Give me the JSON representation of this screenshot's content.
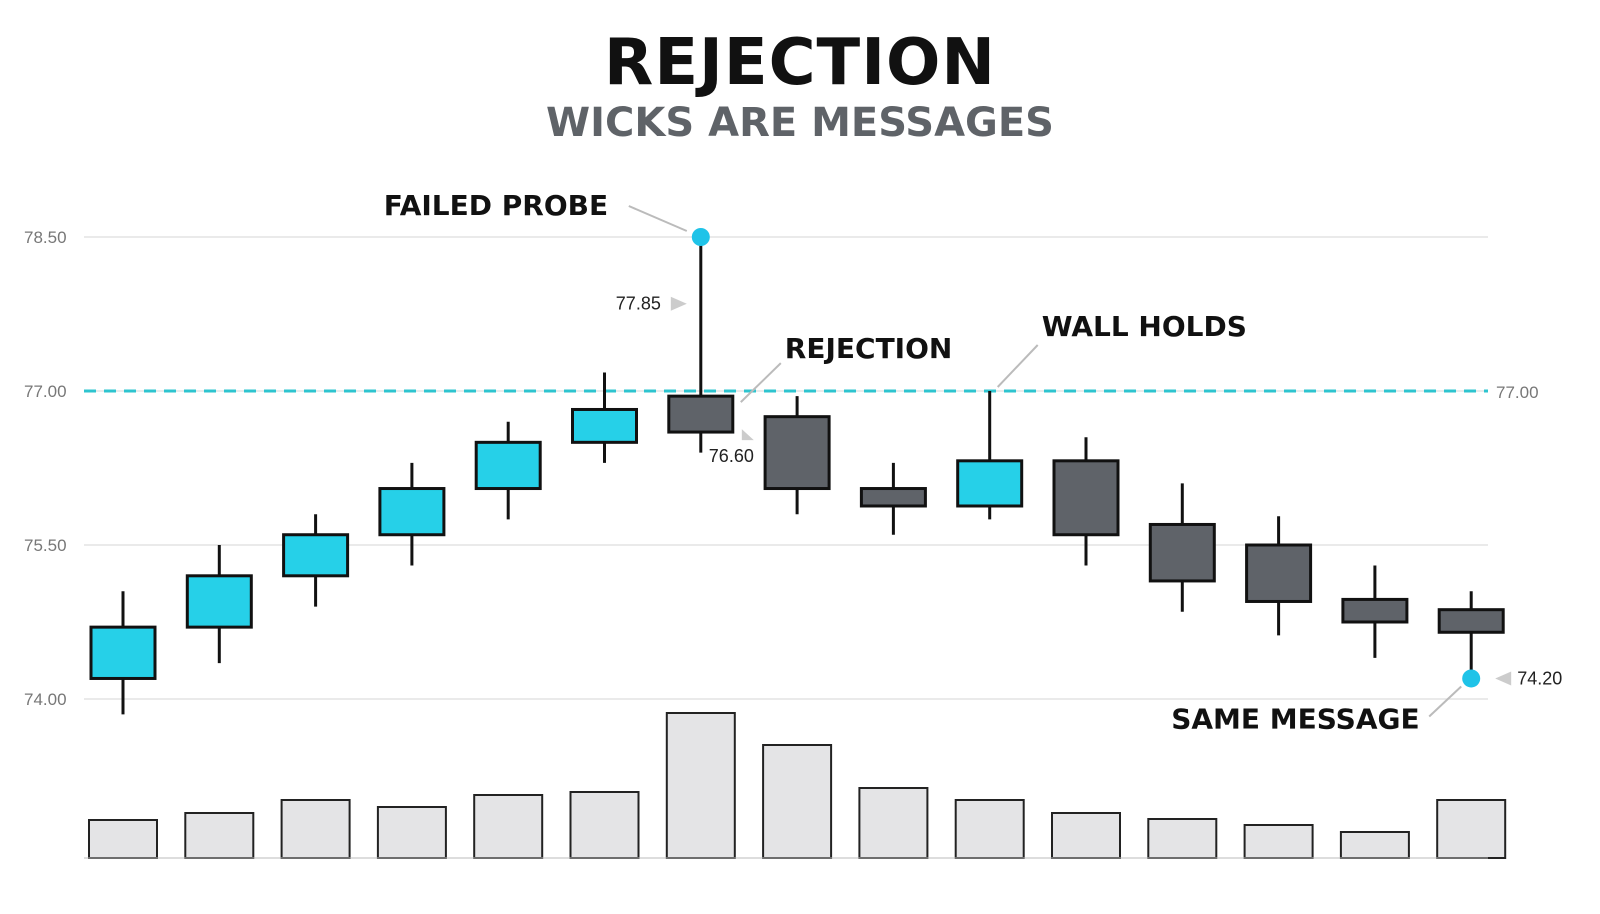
{
  "title": "REJECTION",
  "subtitle": "WICKS ARE MESSAGES",
  "colors": {
    "bull": "#26d0e8",
    "bear": "#5f6369",
    "outline": "#111111",
    "volume_fill": "#e4e4e6",
    "grid": "#dddddd",
    "level_line": "#2ec4cf",
    "marker": "#1fc3e8"
  },
  "chart_data": {
    "type": "candlestick",
    "ylim": [
      74.0,
      78.5
    ],
    "y_ticks": [
      "78.50",
      "77.00",
      "75.50",
      "74.00"
    ],
    "grid": true,
    "candles": [
      {
        "open": 74.2,
        "high": 75.05,
        "low": 73.85,
        "close": 74.7
      },
      {
        "open": 74.7,
        "high": 75.5,
        "low": 74.35,
        "close": 75.2
      },
      {
        "open": 75.2,
        "high": 75.8,
        "low": 74.9,
        "close": 75.6
      },
      {
        "open": 75.6,
        "high": 76.3,
        "low": 75.3,
        "close": 76.05
      },
      {
        "open": 76.05,
        "high": 76.7,
        "low": 75.75,
        "close": 76.5
      },
      {
        "open": 76.5,
        "high": 77.18,
        "low": 76.3,
        "close": 76.82
      },
      {
        "open": 76.95,
        "high": 78.5,
        "low": 76.4,
        "close": 76.6
      },
      {
        "open": 76.75,
        "high": 76.95,
        "low": 75.8,
        "close": 76.05
      },
      {
        "open": 76.05,
        "high": 76.3,
        "low": 75.6,
        "close": 75.88
      },
      {
        "open": 75.88,
        "high": 77.0,
        "low": 75.75,
        "close": 76.32
      },
      {
        "open": 76.32,
        "high": 76.55,
        "low": 75.3,
        "close": 75.6
      },
      {
        "open": 75.7,
        "high": 76.1,
        "low": 74.85,
        "close": 75.15
      },
      {
        "open": 75.5,
        "high": 75.78,
        "low": 74.62,
        "close": 74.95
      },
      {
        "open": 74.97,
        "high": 75.3,
        "low": 74.4,
        "close": 74.75
      },
      {
        "open": 74.87,
        "high": 75.05,
        "low": 74.2,
        "close": 74.65
      }
    ],
    "volume": [
      38,
      45,
      58,
      51,
      63,
      66,
      145,
      113,
      70,
      58,
      45,
      39,
      33,
      26,
      58
    ],
    "level": {
      "value": 77.0,
      "label": "77.00"
    },
    "price_labels": [
      {
        "text": "77.85",
        "value": 77.85,
        "candle": 6
      },
      {
        "text": "76.60",
        "value": 76.6,
        "candle": 6
      },
      {
        "text": "74.20",
        "value": 74.2,
        "candle": 14
      }
    ],
    "annotations": [
      {
        "text": "FAILED PROBE",
        "candle": 6,
        "value": 78.5
      },
      {
        "text": "REJECTION",
        "candle": 6,
        "value": 76.95
      },
      {
        "text": "WALL HOLDS",
        "candle": 9,
        "value": 77.0
      },
      {
        "text": "SAME MESSAGE",
        "candle": 14,
        "value": 74.2
      }
    ],
    "markers": [
      {
        "candle": 6,
        "value": 78.5
      },
      {
        "candle": 14,
        "value": 74.2
      }
    ]
  }
}
